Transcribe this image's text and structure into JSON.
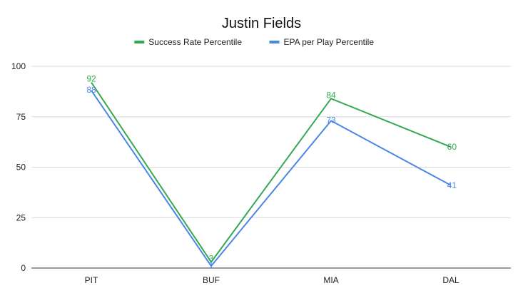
{
  "chart_data": {
    "type": "line",
    "title": "Justin Fields",
    "xlabel": "",
    "ylabel": "",
    "categories": [
      "PIT",
      "BUF",
      "MIA",
      "DAL"
    ],
    "ylim": [
      0,
      100
    ],
    "yticks": [
      0,
      25,
      50,
      75,
      100
    ],
    "grid": true,
    "legend": "top",
    "series": [
      {
        "name": "Success Rate Percentile",
        "color": "#34a853",
        "values": [
          92,
          3,
          84,
          60
        ]
      },
      {
        "name": "EPA per Play Percentile",
        "color": "#4a86e8",
        "values": [
          88,
          1,
          73,
          41
        ]
      }
    ]
  }
}
